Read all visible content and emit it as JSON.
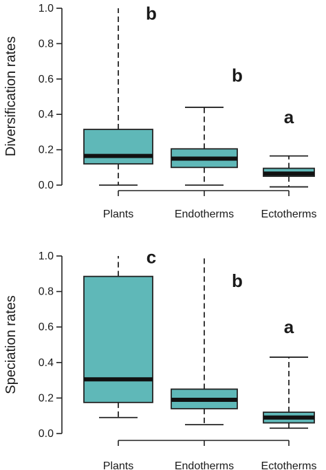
{
  "chart_data": [
    {
      "type": "box",
      "ylabel": "Diversification rates",
      "ylim": [
        0,
        1.0
      ],
      "yticks": [
        "0.0",
        "0.2",
        "0.4",
        "0.6",
        "0.8",
        "1.0"
      ],
      "ytick_values": [
        0,
        0.2,
        0.4,
        0.6,
        0.8,
        1.0
      ],
      "categories": [
        "Plants",
        "Endotherms",
        "Ectotherms"
      ],
      "boxes": [
        {
          "q1": 0.12,
          "median": 0.165,
          "q3": 0.315,
          "whisker_low": 0.0,
          "whisker_high": 1.0,
          "whisker_clipped": true
        },
        {
          "q1": 0.1,
          "median": 0.15,
          "q3": 0.205,
          "whisker_low": 0.0,
          "whisker_high": 0.44
        },
        {
          "q1": 0.05,
          "median": 0.065,
          "q3": 0.095,
          "whisker_low": -0.01,
          "whisker_high": 0.165
        }
      ],
      "annotations": [
        "b",
        "b",
        "a"
      ],
      "annotation_y": [
        0.97,
        0.62,
        0.385
      ],
      "box_color": "#5fb8b8"
    },
    {
      "type": "box",
      "ylabel": "Speciation rates",
      "ylim": [
        0,
        1.0
      ],
      "yticks": [
        "0.0",
        "0.2",
        "0.4",
        "0.6",
        "0.8",
        "1.0"
      ],
      "ytick_values": [
        0,
        0.2,
        0.4,
        0.6,
        0.8,
        1.0
      ],
      "categories": [
        "Plants",
        "Endotherms",
        "Ectotherms"
      ],
      "boxes": [
        {
          "q1": 0.175,
          "median": 0.305,
          "q3": 0.885,
          "whisker_low": 0.09,
          "whisker_high": 1.0,
          "whisker_clipped": true
        },
        {
          "q1": 0.14,
          "median": 0.19,
          "q3": 0.25,
          "whisker_low": 0.05,
          "whisker_high": 1.0,
          "whisker_clipped": true
        },
        {
          "q1": 0.06,
          "median": 0.09,
          "q3": 0.12,
          "whisker_low": 0.03,
          "whisker_high": 0.43
        }
      ],
      "annotations": [
        "c",
        "b",
        "a"
      ],
      "annotation_y": [
        0.995,
        0.86,
        0.6
      ],
      "box_color": "#5fb8b8"
    }
  ]
}
